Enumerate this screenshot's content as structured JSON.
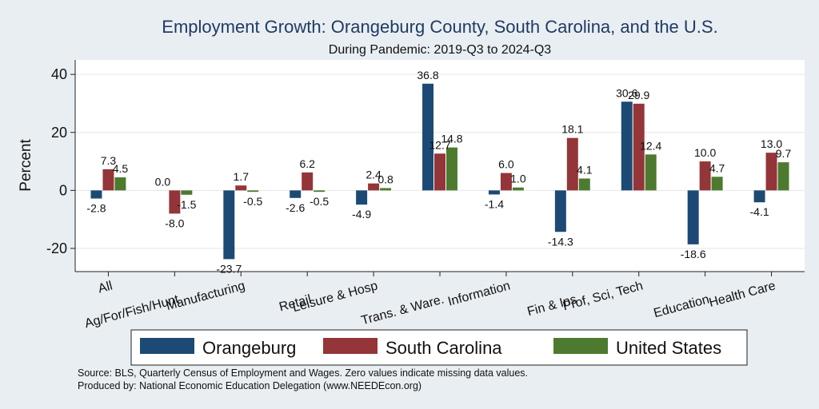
{
  "colors": {
    "background": "#e9eef2",
    "plot_area": "#ffffff",
    "title": "#1f3b63"
  },
  "chart_data": {
    "type": "bar",
    "title": "Employment Growth: Orangeburg County, South Carolina, and the U.S.",
    "subtitle": "During Pandemic: 2019-Q3 to 2024-Q3",
    "ylabel": "Percent",
    "xlabel": "",
    "ylim": [
      -28,
      45
    ],
    "yticks": [
      -20,
      0,
      20,
      40
    ],
    "grid": true,
    "legend_position": "bottom",
    "categories": [
      "All",
      "Ag/For/Fish/Hunt",
      "Manufacturing",
      "Retail",
      "Leisure & Hosp",
      "Trans. & Ware.",
      "Information",
      "Fin & Ins",
      "Prof, Sci, Tech",
      "Education",
      "Health Care"
    ],
    "series": [
      {
        "name": "Orangeburg",
        "color": "#1c4a74",
        "values": [
          -2.8,
          0.0,
          -23.7,
          -2.6,
          -4.9,
          36.8,
          -1.4,
          -14.3,
          30.6,
          -18.6,
          -4.1
        ]
      },
      {
        "name": "South Carolina",
        "color": "#943539",
        "values": [
          7.3,
          -8.0,
          1.7,
          6.2,
          2.4,
          12.7,
          6.0,
          18.1,
          29.9,
          10.0,
          13.0
        ]
      },
      {
        "name": "United States",
        "color": "#4d7a2f",
        "values": [
          4.5,
          -1.5,
          -0.5,
          -0.5,
          0.8,
          14.8,
          1.0,
          4.1,
          12.4,
          4.7,
          9.7
        ]
      }
    ],
    "notes": [
      "Source: BLS, Quarterly Census of Employment and Wages. Zero values indicate missing data values.",
      "Produced by: National Economic Education Delegation (www.NEEDEcon.org)"
    ]
  }
}
